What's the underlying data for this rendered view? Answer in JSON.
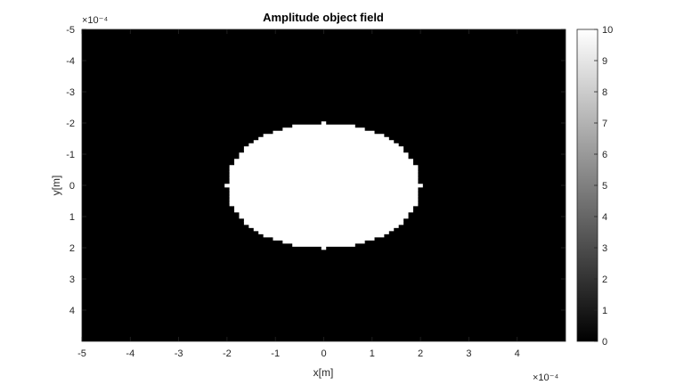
{
  "chart_data": {
    "type": "heatmap",
    "title": "Amplitude object field",
    "xlabel": "x[m]",
    "ylabel": "y[m]",
    "x_scale_label": "×10⁻⁴",
    "y_scale_label": "×10⁻⁴",
    "xlim": [
      -5,
      5
    ],
    "ylim": [
      -5,
      5
    ],
    "y_reversed": true,
    "x_ticks": [
      "-5",
      "-4",
      "-3",
      "-2",
      "-1",
      "0",
      "1",
      "2",
      "3",
      "4"
    ],
    "y_ticks": [
      "-5",
      "-4",
      "-3",
      "-2",
      "-1",
      "0",
      "1",
      "2",
      "3",
      "4"
    ],
    "colormap": "gray",
    "clim": [
      0,
      10
    ],
    "colorbar_ticks": [
      "0",
      "1",
      "2",
      "3",
      "4",
      "5",
      "6",
      "7",
      "8",
      "9",
      "10"
    ],
    "field": {
      "shape": "disc",
      "center": [
        0,
        0
      ],
      "radius": 2,
      "inside_value": 10,
      "outside_value": 0,
      "grid_step": 0.1,
      "units_exponent": -4
    }
  }
}
